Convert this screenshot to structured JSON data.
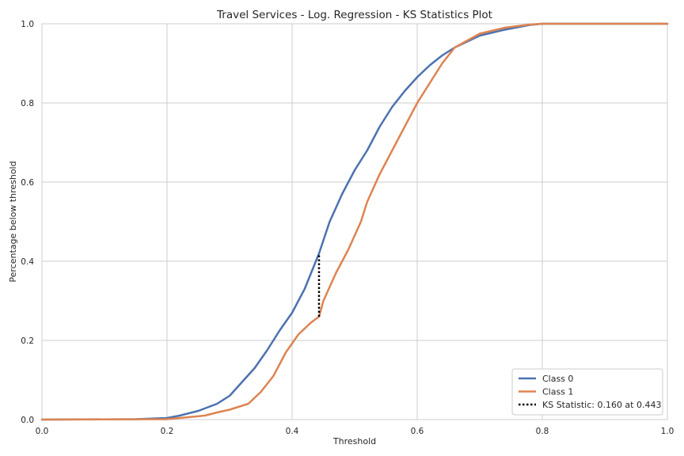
{
  "chart_data": {
    "type": "line",
    "title": "Travel Services  - Log. Regression - KS Statistics Plot",
    "xlabel": "Threshold",
    "ylabel": "Percentage below threshold",
    "xlim": [
      0.0,
      1.0
    ],
    "ylim": [
      0.0,
      1.0
    ],
    "x_ticks": [
      "0.0",
      "0.2",
      "0.4",
      "0.6",
      "0.8",
      "1.0"
    ],
    "y_ticks": [
      "0.0",
      "0.2",
      "0.4",
      "0.6",
      "0.8",
      "1.0"
    ],
    "grid": true,
    "legend_position": "bottom-right",
    "series": [
      {
        "name": "Class 0",
        "color": "#4c72b0",
        "x": [
          0.0,
          0.15,
          0.2,
          0.22,
          0.25,
          0.28,
          0.3,
          0.32,
          0.34,
          0.36,
          0.38,
          0.4,
          0.42,
          0.443,
          0.46,
          0.48,
          0.5,
          0.52,
          0.54,
          0.56,
          0.58,
          0.6,
          0.62,
          0.64,
          0.66,
          0.7,
          0.74,
          0.78,
          0.8,
          1.0
        ],
        "y": [
          0.0,
          0.001,
          0.004,
          0.01,
          0.022,
          0.04,
          0.06,
          0.095,
          0.13,
          0.175,
          0.225,
          0.27,
          0.33,
          0.42,
          0.5,
          0.57,
          0.63,
          0.68,
          0.74,
          0.79,
          0.83,
          0.865,
          0.895,
          0.92,
          0.94,
          0.97,
          0.985,
          0.997,
          1.0,
          1.0
        ]
      },
      {
        "name": "Class 1",
        "color": "#dd8452",
        "x": [
          0.0,
          0.2,
          0.22,
          0.26,
          0.28,
          0.3,
          0.33,
          0.35,
          0.37,
          0.39,
          0.41,
          0.43,
          0.443,
          0.45,
          0.47,
          0.49,
          0.51,
          0.52,
          0.54,
          0.56,
          0.58,
          0.6,
          0.62,
          0.64,
          0.66,
          0.7,
          0.74,
          0.78,
          0.8,
          1.0
        ],
        "y": [
          0.0,
          0.001,
          0.004,
          0.01,
          0.018,
          0.025,
          0.04,
          0.07,
          0.11,
          0.17,
          0.215,
          0.245,
          0.26,
          0.3,
          0.37,
          0.43,
          0.5,
          0.55,
          0.62,
          0.68,
          0.74,
          0.8,
          0.85,
          0.9,
          0.94,
          0.975,
          0.99,
          0.998,
          1.0,
          1.0
        ]
      }
    ],
    "ks_statistic": {
      "label": "KS Statistic: 0.160 at 0.443",
      "x": 0.443,
      "y_start": 0.26,
      "y_end": 0.42,
      "color": "#000000"
    }
  }
}
